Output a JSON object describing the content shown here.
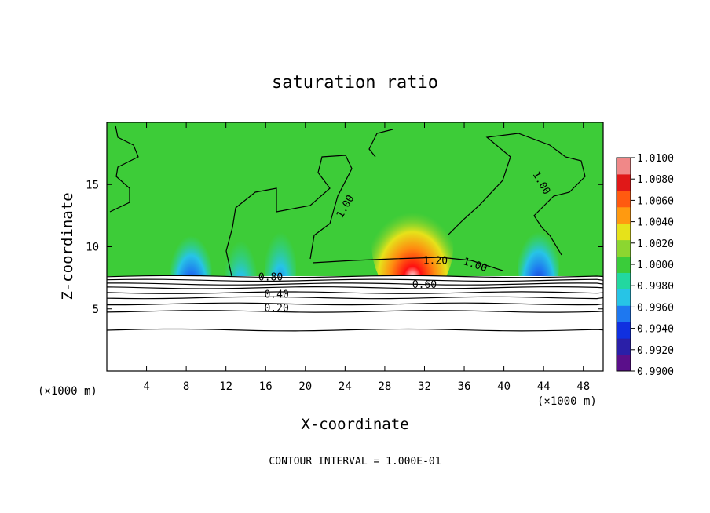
{
  "chart_data": {
    "type": "heatmap",
    "title": "saturation ratio",
    "xlabel": "X-coordinate",
    "ylabel": "Z-coordinate",
    "x_unit": "(×1000 m)",
    "x_unit_right": "(×1000 m)",
    "xlim": [
      0,
      50
    ],
    "ylim": [
      0,
      20
    ],
    "x_ticks": [
      4,
      8,
      12,
      16,
      20,
      24,
      28,
      32,
      36,
      40,
      44,
      48
    ],
    "y_ticks": [
      5,
      10,
      15
    ],
    "footnote": "CONTOUR INTERVAL = 1.000E-01",
    "colorbar": {
      "labels": [
        "1.0100",
        "1.0080",
        "1.0060",
        "1.0040",
        "1.0020",
        "1.0000",
        "0.9980",
        "0.9960",
        "0.9940",
        "0.9920",
        "0.9900"
      ],
      "range": [
        0.99,
        1.01
      ],
      "colors": [
        "#5a0f8a",
        "#2a1fa8",
        "#1030e0",
        "#1e78f0",
        "#27c4e6",
        "#22d8a0",
        "#3acc3a",
        "#8cd630",
        "#e6e21a",
        "#ff9a10",
        "#ff5a10",
        "#e01818",
        "#f08888"
      ]
    },
    "contour_labels": [
      {
        "text": "1.00",
        "x": 24.3,
        "z": 13.1,
        "rotate": -60
      },
      {
        "text": "1.00",
        "x": 43.5,
        "z": 15.0,
        "rotate": 60
      },
      {
        "text": "1.20",
        "x": 33.1,
        "z": 8.6,
        "rotate": 0
      },
      {
        "text": "1.00",
        "x": 37.0,
        "z": 8.3,
        "rotate": 18
      },
      {
        "text": "0.80",
        "x": 16.5,
        "z": 7.3,
        "rotate": 0
      },
      {
        "text": "0.60",
        "x": 32.0,
        "z": 6.7,
        "rotate": 0
      },
      {
        "text": "0.40",
        "x": 17.1,
        "z": 5.9,
        "rotate": 0
      },
      {
        "text": "0.20",
        "x": 17.1,
        "z": 4.8,
        "rotate": 0
      }
    ],
    "contour_levels_below": [
      {
        "level": 0.9,
        "z": 7.6
      },
      {
        "level": 0.8,
        "z": 7.3
      },
      {
        "level": 0.7,
        "z": 7.0
      },
      {
        "level": 0.6,
        "z": 6.7
      },
      {
        "level": 0.5,
        "z": 6.3
      },
      {
        "level": 0.4,
        "z": 5.9
      },
      {
        "level": 0.3,
        "z": 5.4
      },
      {
        "level": 0.2,
        "z": 4.8
      },
      {
        "level": 0.1,
        "z": 3.3
      }
    ],
    "field_features": [
      {
        "kind": "supersaturation",
        "x": 30.8,
        "z": 10.5,
        "peak": 1.01
      },
      {
        "kind": "subsaturation",
        "x": 8.5,
        "z": 9.0,
        "peak": 0.992
      },
      {
        "kind": "subsaturation",
        "x": 13.5,
        "z": 8.6,
        "peak": 0.996
      },
      {
        "kind": "subsaturation",
        "x": 17.5,
        "z": 9.3,
        "peak": 0.996
      },
      {
        "kind": "subsaturation",
        "x": 43.5,
        "z": 9.3,
        "peak": 0.994
      }
    ]
  }
}
